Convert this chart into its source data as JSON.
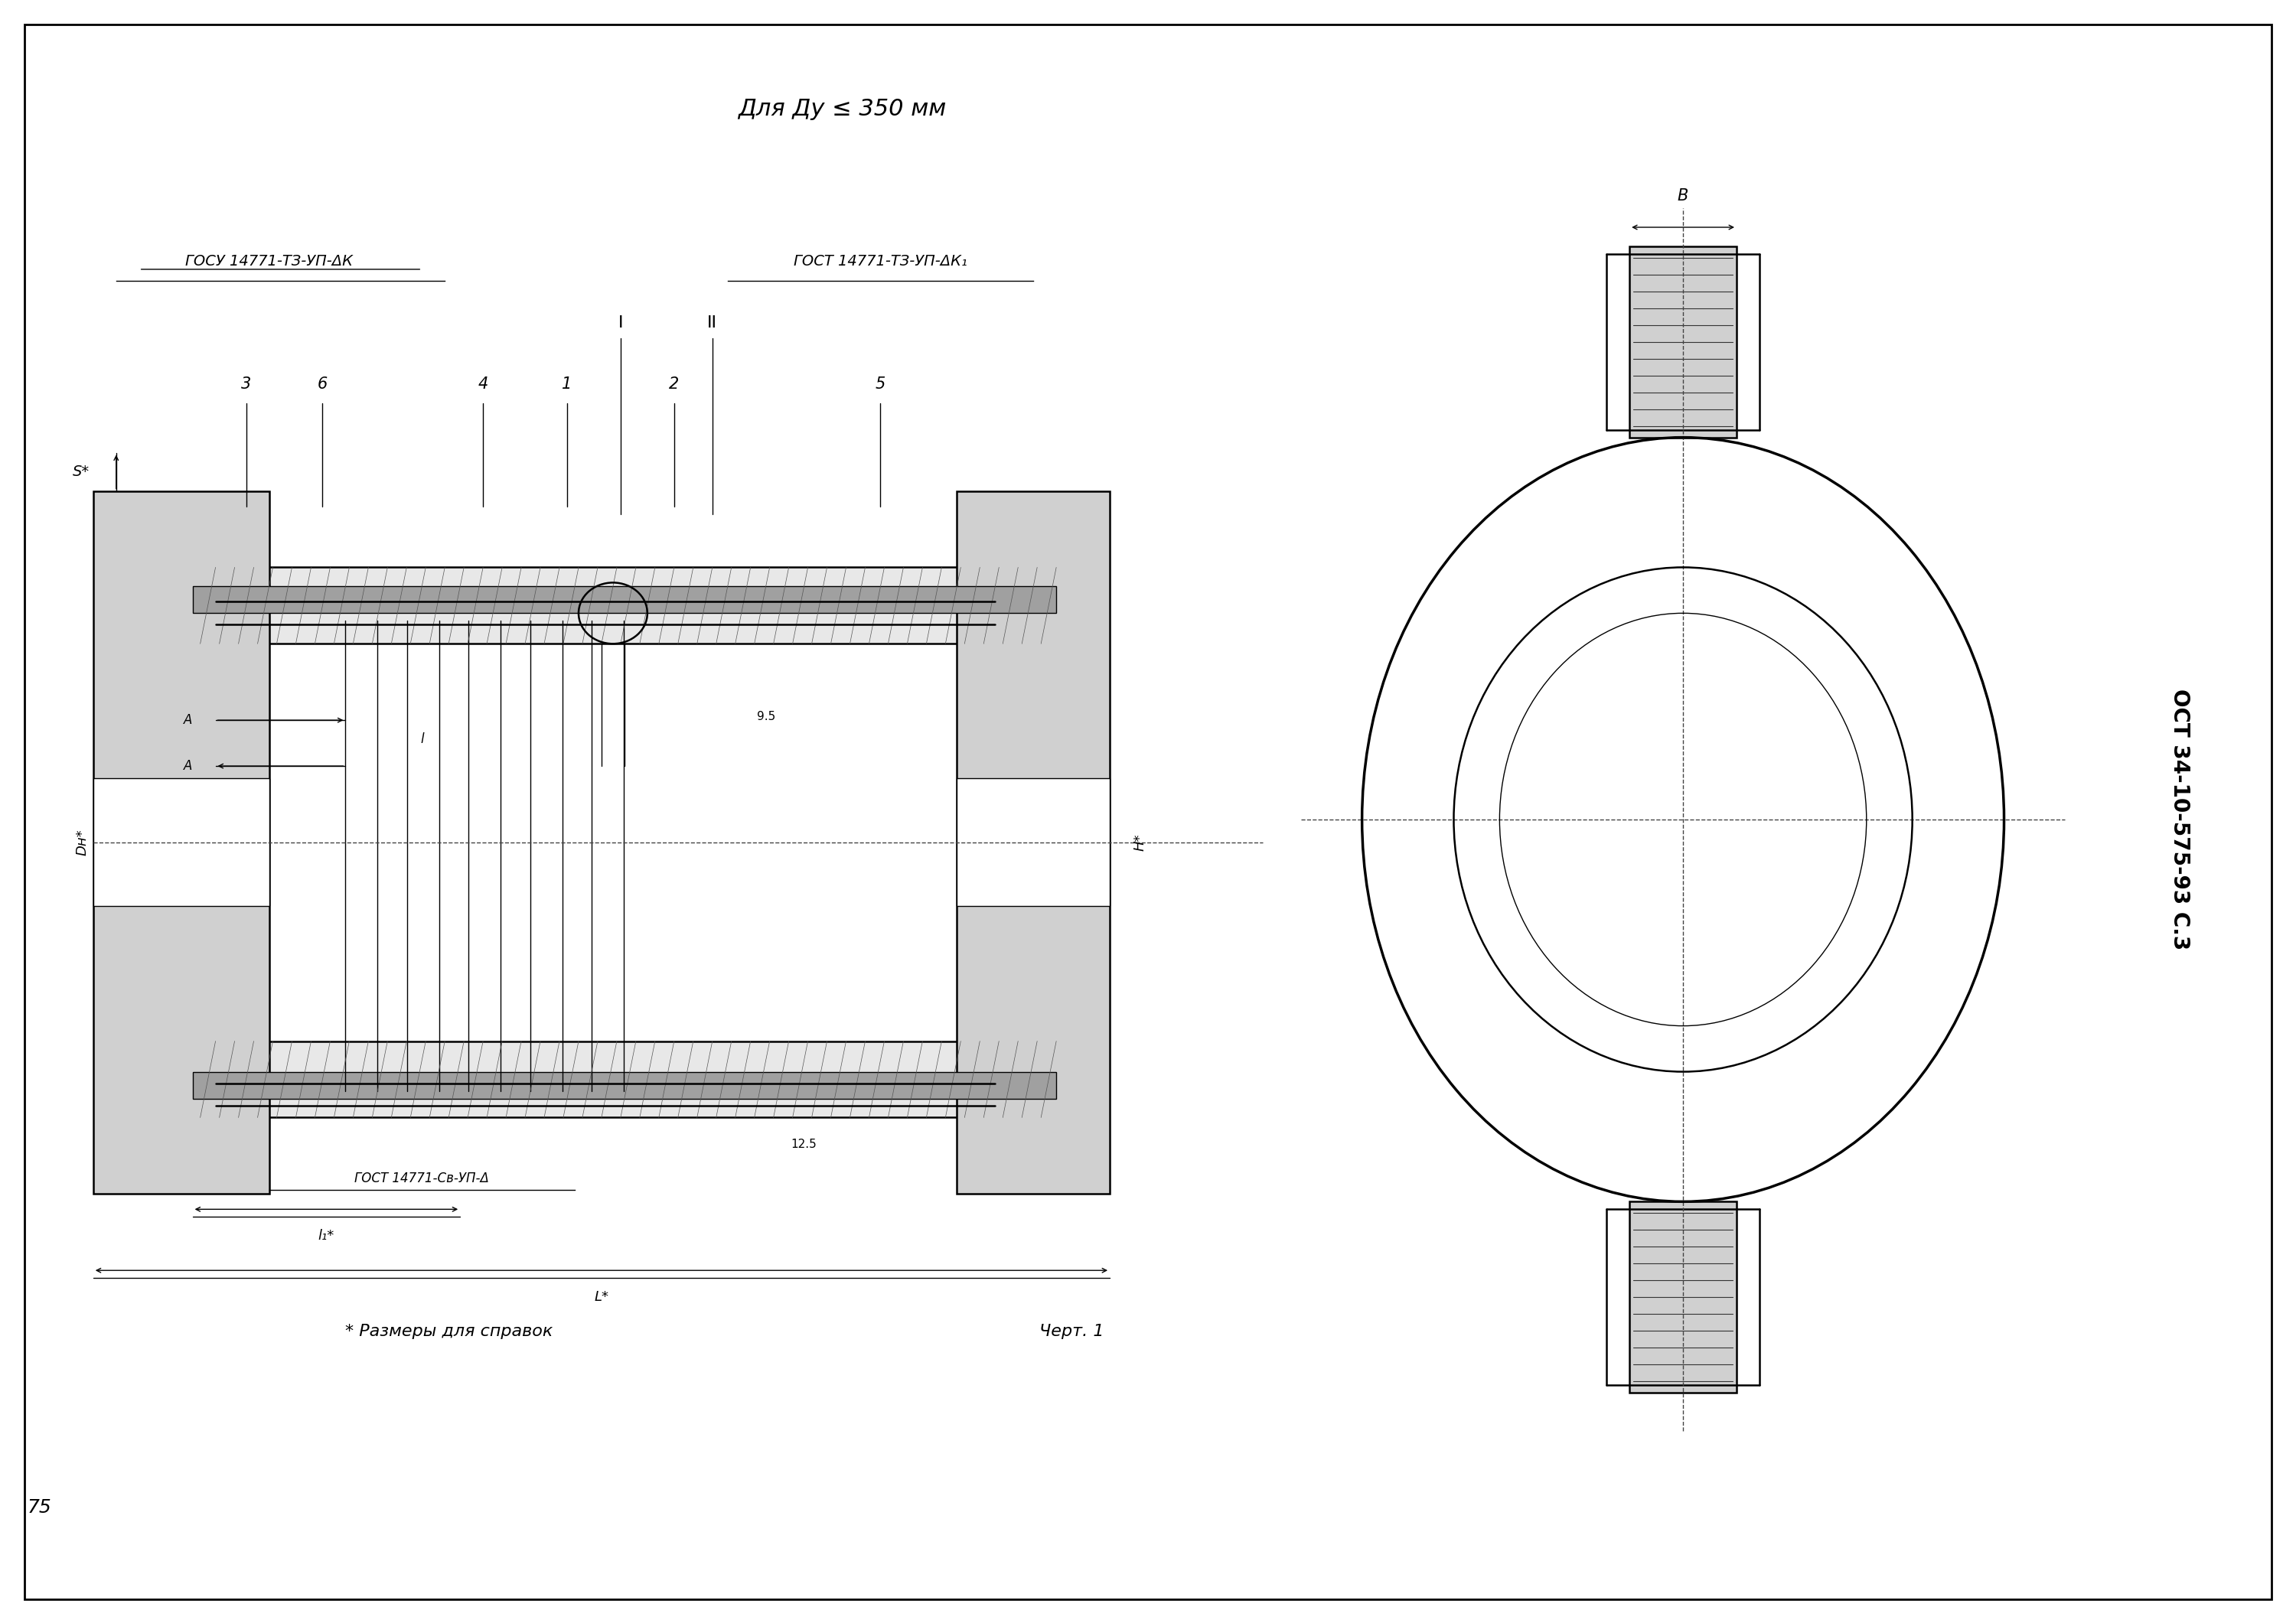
{
  "title_top": "Для Ду ≤ 350 мм",
  "gost_left": "ГОСУ 14771-ТЗ-УП-ΔК",
  "gost_right": "ГОСТ 14771-ТЗ-УП-ΔК₁",
  "gost_bottom": "ГОСТ 14771-Св-УП-Δ",
  "stamp_right": "ОСТ 34-10-575-93 С.3",
  "page_num": "75",
  "footnote": "* Размеры для справок",
  "chert": "Черт. 1",
  "bg_color": "#ffffff",
  "line_color": "#000000"
}
